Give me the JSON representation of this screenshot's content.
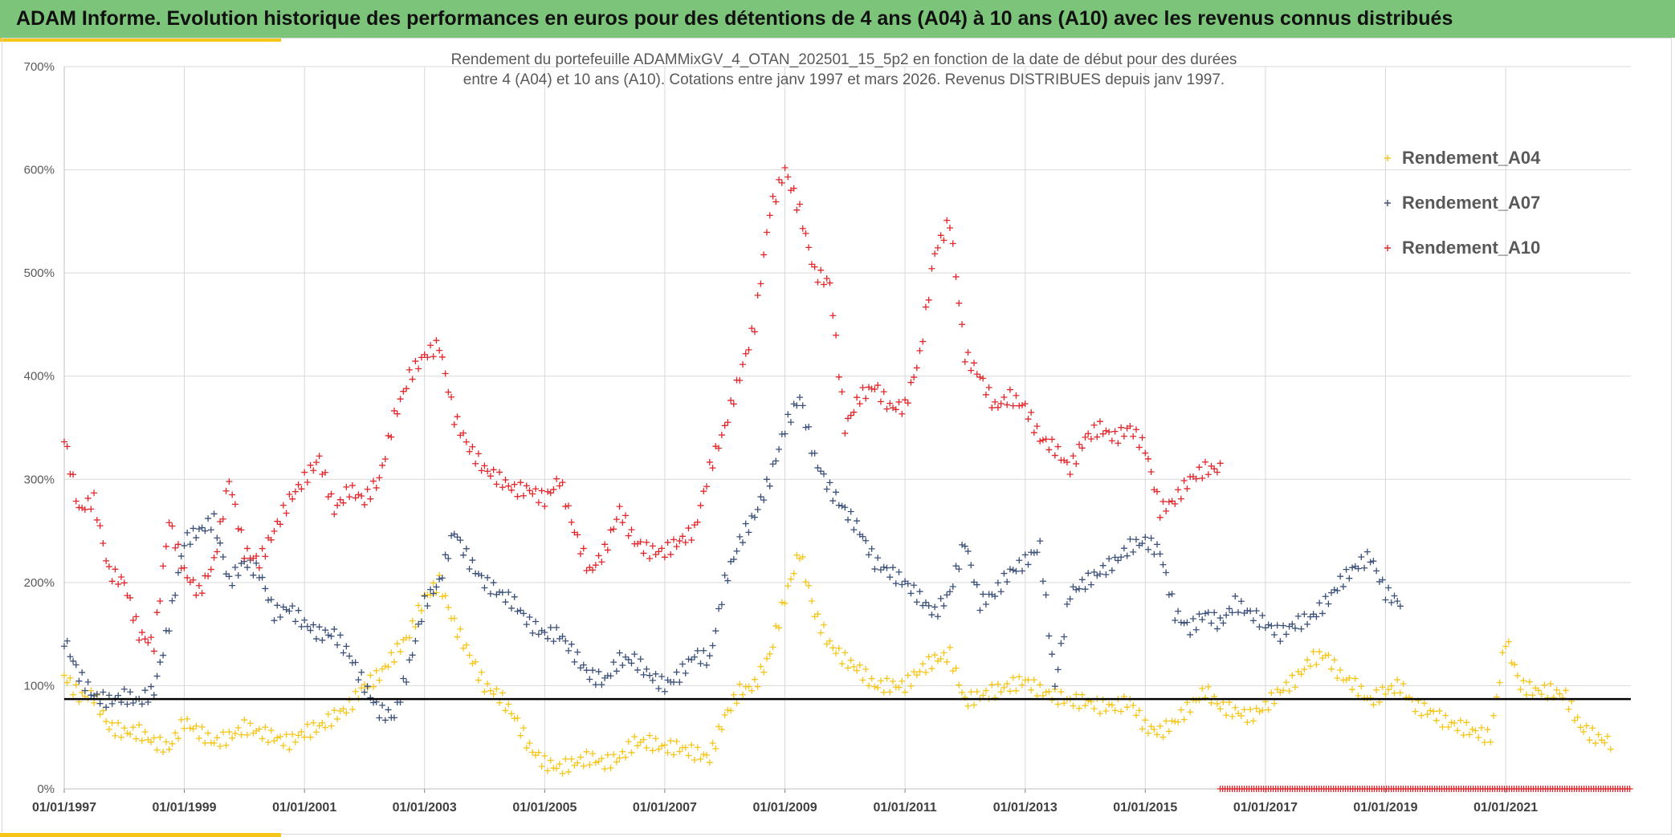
{
  "header": {
    "title": "ADAM Informe. Evolution historique des performances en euros pour des détentions de 4 ans (A04) à 10 ans (A10) avec les revenus connus distribués"
  },
  "colors": {
    "header_bg": "#7cc47a",
    "accent": "#f5c518",
    "a04": "#f5c518",
    "a07": "#3b5078",
    "a10": "#e3262b",
    "reference_line": "#000000"
  },
  "chart_data": {
    "type": "scatter",
    "title_lines": [
      "Rendement du portefeuille ADAMMixGV_4_OTAN_202501_15_5p2  en fonction de la date de début pour des durées",
      "entre 4 (A04) et 10 ans (A10). Cotations entre janv 1997 et mars 2026. Revenus DISTRIBUES depuis janv 1997."
    ],
    "xlabel": "",
    "ylabel": "",
    "x_range": [
      "1997-01-01",
      "2023-02-01"
    ],
    "ylim": [
      0,
      700
    ],
    "y_ticks": [
      0,
      100,
      200,
      300,
      400,
      500,
      600,
      700
    ],
    "y_tick_labels": [
      "0%",
      "100%",
      "200%",
      "300%",
      "400%",
      "500%",
      "600%",
      "700%"
    ],
    "x_tick_labels": [
      "01/01/1997",
      "01/01/1999",
      "01/01/2001",
      "01/01/2003",
      "01/01/2005",
      "01/01/2007",
      "01/01/2009",
      "01/01/2011",
      "01/01/2013",
      "01/01/2015",
      "01/01/2017",
      "01/01/2019",
      "01/01/2021"
    ],
    "grid": true,
    "legend_position": "top-right",
    "reference_line": {
      "y": 87
    },
    "series": [
      {
        "name": "Rendement_A04",
        "color_key": "a04",
        "x": [
          "1997-01",
          "1997-04",
          "1997-07",
          "1997-10",
          "1998-01",
          "1998-04",
          "1998-07",
          "1998-10",
          "1999-01",
          "1999-04",
          "1999-07",
          "1999-10",
          "2000-01",
          "2000-04",
          "2000-07",
          "2000-10",
          "2001-01",
          "2001-04",
          "2001-07",
          "2001-10",
          "2002-01",
          "2002-04",
          "2002-07",
          "2002-10",
          "2003-01",
          "2003-04",
          "2003-07",
          "2003-10",
          "2004-01",
          "2004-04",
          "2004-07",
          "2004-10",
          "2005-01",
          "2005-04",
          "2005-07",
          "2005-10",
          "2006-01",
          "2006-04",
          "2006-07",
          "2006-10",
          "2007-01",
          "2007-04",
          "2007-07",
          "2007-10",
          "2008-01",
          "2008-04",
          "2008-07",
          "2008-10",
          "2009-01",
          "2009-04",
          "2009-07",
          "2009-10",
          "2010-01",
          "2010-04",
          "2010-07",
          "2010-10",
          "2011-01",
          "2011-04",
          "2011-07",
          "2011-10",
          "2012-01",
          "2012-04",
          "2012-07",
          "2012-10",
          "2013-01",
          "2013-04",
          "2013-07",
          "2013-10",
          "2014-01",
          "2014-04",
          "2014-07",
          "2014-10",
          "2015-01",
          "2015-04",
          "2015-07",
          "2015-10",
          "2016-01",
          "2016-04",
          "2016-07",
          "2016-10",
          "2017-01",
          "2017-04",
          "2017-07",
          "2017-10",
          "2018-01",
          "2018-04",
          "2018-07",
          "2018-10",
          "2019-01",
          "2019-04",
          "2019-07",
          "2019-10",
          "2020-01",
          "2020-04",
          "2020-07",
          "2020-10",
          "2021-01",
          "2021-04",
          "2021-07",
          "2021-10",
          "2022-01",
          "2022-04",
          "2022-07",
          "2022-10"
        ],
        "values": [
          110,
          90,
          90,
          60,
          55,
          55,
          45,
          40,
          65,
          55,
          45,
          50,
          60,
          55,
          50,
          45,
          55,
          60,
          70,
          80,
          100,
          110,
          130,
          150,
          185,
          200,
          160,
          130,
          100,
          90,
          70,
          40,
          25,
          20,
          25,
          30,
          25,
          30,
          45,
          45,
          40,
          40,
          35,
          30,
          70,
          95,
          100,
          130,
          185,
          230,
          170,
          140,
          125,
          115,
          100,
          100,
          100,
          115,
          125,
          130,
          85,
          90,
          95,
          100,
          105,
          95,
          90,
          85,
          85,
          80,
          80,
          85,
          60,
          55,
          65,
          80,
          95,
          80,
          75,
          70,
          80,
          95,
          105,
          125,
          130,
          110,
          100,
          85,
          95,
          100,
          80,
          75,
          65,
          60,
          55,
          50,
          145,
          100,
          95,
          95,
          90,
          60,
          50,
          45
        ]
      },
      {
        "name": "Rendement_A07",
        "color_key": "a07",
        "x": [
          "1997-01",
          "1997-04",
          "1997-07",
          "1997-10",
          "1998-01",
          "1998-04",
          "1998-07",
          "1998-10",
          "1999-01",
          "1999-04",
          "1999-07",
          "1999-10",
          "2000-01",
          "2000-04",
          "2000-07",
          "2000-10",
          "2001-01",
          "2001-04",
          "2001-07",
          "2001-10",
          "2002-01",
          "2002-04",
          "2002-07",
          "2002-10",
          "2003-01",
          "2003-04",
          "2003-07",
          "2003-10",
          "2004-01",
          "2004-04",
          "2004-07",
          "2004-10",
          "2005-01",
          "2005-04",
          "2005-07",
          "2005-10",
          "2006-01",
          "2006-04",
          "2006-07",
          "2006-10",
          "2007-01",
          "2007-04",
          "2007-07",
          "2007-10",
          "2008-01",
          "2008-04",
          "2008-07",
          "2008-10",
          "2009-01",
          "2009-04",
          "2009-07",
          "2009-10",
          "2010-01",
          "2010-04",
          "2010-07",
          "2010-10",
          "2011-01",
          "2011-04",
          "2011-07",
          "2011-10",
          "2012-01",
          "2012-04",
          "2012-07",
          "2012-10",
          "2013-01",
          "2013-04",
          "2013-07",
          "2013-10",
          "2014-01",
          "2014-04",
          "2014-07",
          "2014-10",
          "2015-01",
          "2015-04",
          "2015-07",
          "2015-10",
          "2016-01",
          "2016-04",
          "2016-07",
          "2016-10",
          "2017-01",
          "2017-04",
          "2017-07",
          "2017-10",
          "2018-01",
          "2018-04",
          "2018-07",
          "2018-10",
          "2019-01",
          "2019-04"
        ],
        "values": [
          145,
          110,
          90,
          85,
          90,
          85,
          95,
          160,
          240,
          250,
          260,
          200,
          220,
          210,
          170,
          175,
          160,
          150,
          150,
          130,
          100,
          75,
          70,
          120,
          180,
          200,
          250,
          220,
          200,
          190,
          180,
          160,
          150,
          150,
          130,
          110,
          105,
          125,
          125,
          110,
          100,
          110,
          130,
          125,
          200,
          240,
          265,
          300,
          350,
          380,
          320,
          290,
          270,
          250,
          220,
          210,
          200,
          185,
          170,
          190,
          240,
          180,
          190,
          210,
          220,
          235,
          100,
          190,
          200,
          210,
          220,
          235,
          240,
          230,
          170,
          155,
          170,
          160,
          180,
          170,
          160,
          150,
          160,
          165,
          180,
          200,
          215,
          225,
          190,
          180
        ]
      },
      {
        "name": "Rendement_A10",
        "color_key": "a10",
        "x": [
          "1997-01",
          "1997-04",
          "1997-07",
          "1997-10",
          "1998-01",
          "1998-04",
          "1998-07",
          "1998-10",
          "1999-01",
          "1999-04",
          "1999-07",
          "1999-10",
          "2000-01",
          "2000-04",
          "2000-07",
          "2000-10",
          "2001-01",
          "2001-04",
          "2001-07",
          "2001-10",
          "2002-01",
          "2002-04",
          "2002-07",
          "2002-10",
          "2003-01",
          "2003-04",
          "2003-07",
          "2003-10",
          "2004-01",
          "2004-04",
          "2004-07",
          "2004-10",
          "2005-01",
          "2005-04",
          "2005-07",
          "2005-10",
          "2006-01",
          "2006-04",
          "2006-07",
          "2006-10",
          "2007-01",
          "2007-04",
          "2007-07",
          "2007-10",
          "2008-01",
          "2008-04",
          "2008-07",
          "2008-10",
          "2009-01",
          "2009-04",
          "2009-07",
          "2009-10",
          "2010-01",
          "2010-04",
          "2010-07",
          "2010-10",
          "2011-01",
          "2011-04",
          "2011-07",
          "2011-10",
          "2012-01",
          "2012-04",
          "2012-07",
          "2012-10",
          "2013-01",
          "2013-04",
          "2013-07",
          "2013-10",
          "2014-01",
          "2014-04",
          "2014-07",
          "2014-10",
          "2015-01",
          "2015-04",
          "2015-07",
          "2015-10",
          "2016-01",
          "2016-04"
        ],
        "values": [
          340,
          270,
          280,
          210,
          200,
          150,
          140,
          260,
          210,
          190,
          220,
          300,
          230,
          220,
          250,
          280,
          300,
          320,
          270,
          290,
          280,
          300,
          360,
          400,
          420,
          430,
          360,
          330,
          310,
          300,
          290,
          290,
          280,
          300,
          250,
          210,
          230,
          270,
          240,
          230,
          230,
          240,
          250,
          310,
          350,
          400,
          450,
          560,
          600,
          560,
          500,
          490,
          350,
          380,
          390,
          370,
          370,
          420,
          520,
          550,
          420,
          400,
          370,
          380,
          370,
          340,
          330,
          310,
          340,
          350,
          340,
          350,
          330,
          270,
          280,
          300,
          310,
          310
        ]
      }
    ],
    "boundary_marks": {
      "from": "2016-04-01",
      "to": "2023-02-01",
      "y": 0,
      "color_key": "a10"
    }
  }
}
